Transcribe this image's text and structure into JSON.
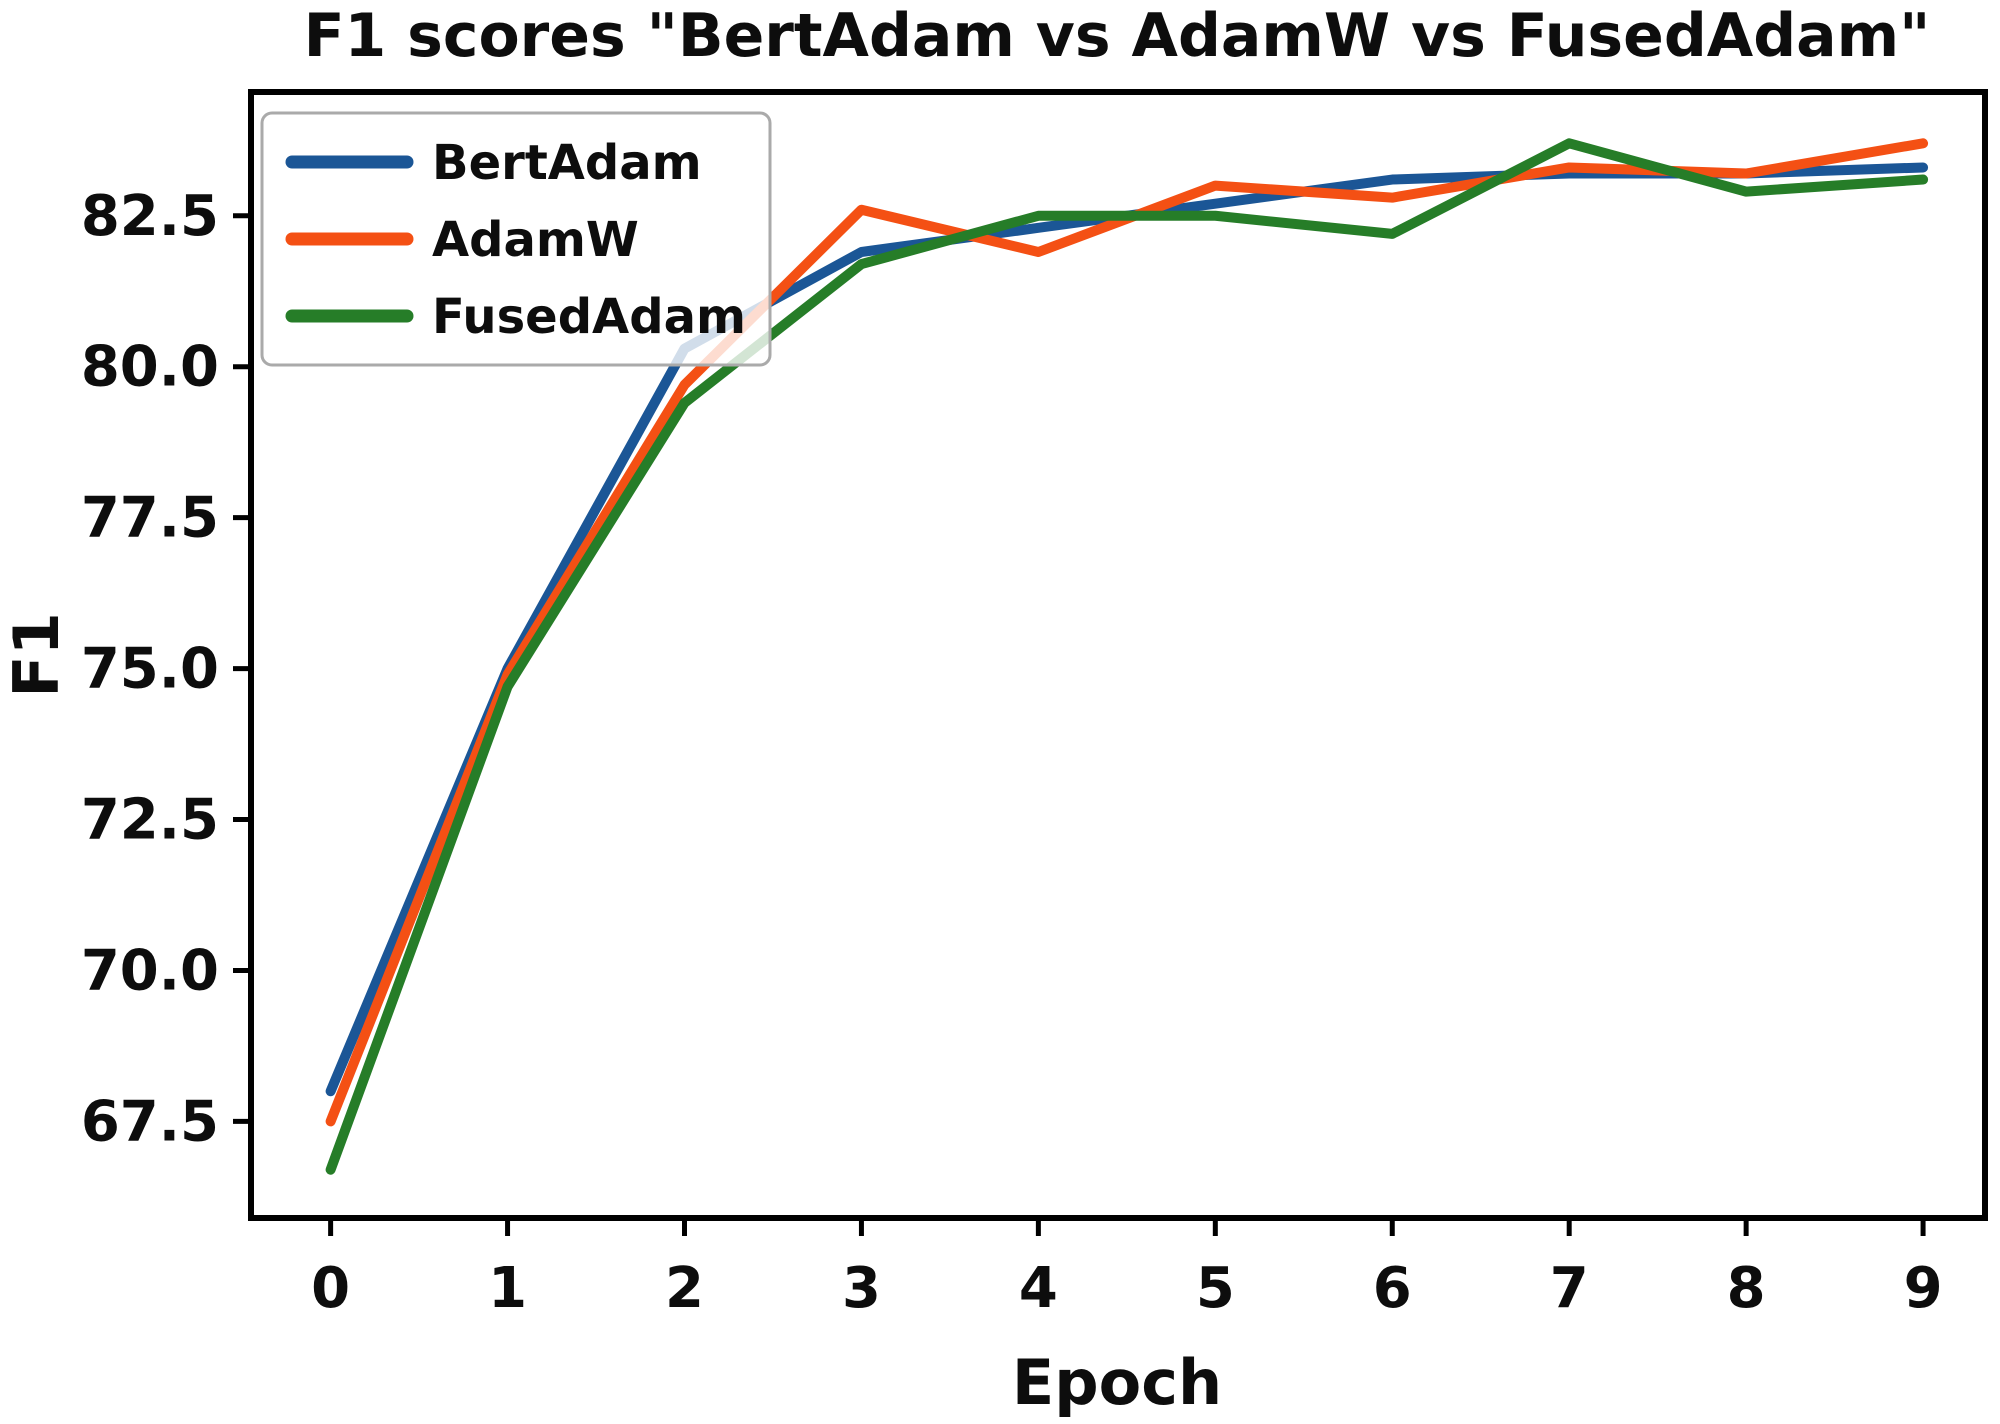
{
  "chart_data": {
    "type": "line",
    "title": "F1 scores \"BertAdam vs AdamW vs FusedAdam\"",
    "xlabel": "Epoch",
    "ylabel": "F1",
    "x": [
      0,
      1,
      2,
      3,
      4,
      5,
      6,
      7,
      8,
      9
    ],
    "xtick_labels": [
      "0",
      "1",
      "2",
      "3",
      "4",
      "5",
      "6",
      "7",
      "8",
      "9"
    ],
    "yticks": [
      67.5,
      70.0,
      72.5,
      75.0,
      77.5,
      80.0,
      82.5
    ],
    "ytick_labels": [
      "67.5",
      "70.0",
      "72.5",
      "75.0",
      "77.5",
      "80.0",
      "82.5"
    ],
    "xlim": [
      -0.45,
      9.35
    ],
    "ylim": [
      65.9,
      84.55
    ],
    "grid": false,
    "legend_position": "upper left",
    "legend_entries": [
      "BertAdam",
      "AdamW",
      "FusedAdam"
    ],
    "series": [
      {
        "name": "BertAdam",
        "color": "#1b5696",
        "values": [
          68.0,
          75.0,
          80.3,
          81.9,
          82.3,
          82.7,
          83.1,
          83.2,
          83.2,
          83.3
        ]
      },
      {
        "name": "AdamW",
        "color": "#f45014",
        "values": [
          67.5,
          74.9,
          79.7,
          82.6,
          81.9,
          83.0,
          82.8,
          83.3,
          83.2,
          83.7
        ]
      },
      {
        "name": "FusedAdam",
        "color": "#267d28",
        "values": [
          66.7,
          74.7,
          79.4,
          81.7,
          82.5,
          82.5,
          82.2,
          83.7,
          82.9,
          83.1
        ]
      }
    ],
    "colors": {
      "axis": "#000000",
      "text": "#0d0d0d",
      "legend_border": "#aaaaaa",
      "legend_fill": "#ffffff",
      "background": "#ffffff"
    }
  }
}
